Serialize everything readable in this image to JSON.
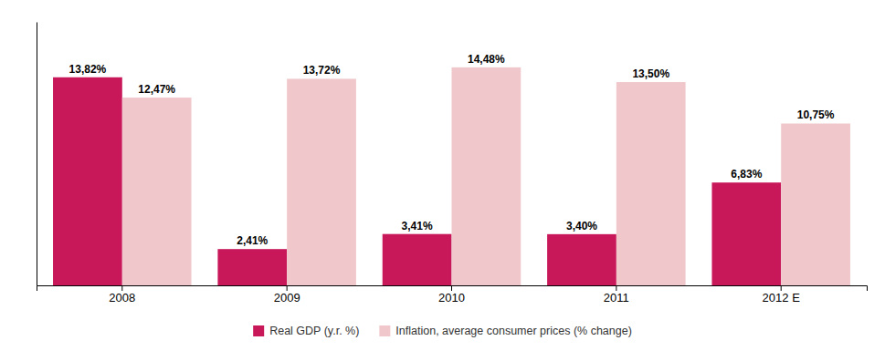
{
  "chart_data": {
    "type": "bar",
    "categories": [
      "2008",
      "2009",
      "2010",
      "2011",
      "2012 E"
    ],
    "series": [
      {
        "name": "Real GDP (y.r. %)",
        "color": "#C8185A",
        "values": [
          13.82,
          2.41,
          3.41,
          3.4,
          6.83
        ],
        "value_labels": [
          "13,82%",
          "2,41%",
          "3,41%",
          "3,40%",
          "6,83%"
        ]
      },
      {
        "name": "Inflation, average consumer prices (% change)",
        "color": "#F0C8CC",
        "values": [
          12.47,
          13.72,
          14.48,
          13.5,
          10.75
        ],
        "value_labels": [
          "12,47%",
          "13,72%",
          "14,48%",
          "13,50%",
          "10,75%"
        ]
      }
    ],
    "ylim": [
      0,
      17.5
    ],
    "data_labels": true,
    "tick_labels": "x",
    "grid": false,
    "legend": "bottom"
  }
}
